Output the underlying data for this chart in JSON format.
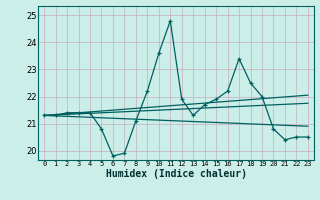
{
  "xlabel": "Humidex (Indice chaleur)",
  "bg_color": "#cceee8",
  "grid_color": "#c8b8c8",
  "line_color": "#006060",
  "xlim": [
    -0.5,
    23.5
  ],
  "ylim": [
    19.65,
    25.35
  ],
  "yticks": [
    20,
    21,
    22,
    23,
    24,
    25
  ],
  "xticks": [
    0,
    1,
    2,
    3,
    4,
    5,
    6,
    7,
    8,
    9,
    10,
    11,
    12,
    13,
    14,
    15,
    16,
    17,
    18,
    19,
    20,
    21,
    22,
    23
  ],
  "series1_x": [
    0,
    1,
    2,
    3,
    4,
    5,
    6,
    7,
    8,
    9,
    10,
    11,
    12,
    13,
    14,
    15,
    16,
    17,
    18,
    19,
    20,
    21,
    22,
    23
  ],
  "series1_y": [
    21.3,
    21.3,
    21.4,
    21.4,
    21.4,
    20.8,
    19.8,
    19.9,
    21.1,
    22.2,
    23.6,
    24.8,
    21.9,
    21.3,
    21.7,
    21.9,
    22.2,
    23.4,
    22.5,
    22.0,
    20.8,
    20.4,
    20.5,
    20.5
  ],
  "trend1_x": [
    0,
    23
  ],
  "trend1_y": [
    21.3,
    22.05
  ],
  "trend2_x": [
    0,
    23
  ],
  "trend2_y": [
    21.3,
    21.75
  ],
  "trend3_x": [
    0,
    23
  ],
  "trend3_y": [
    21.3,
    20.9
  ]
}
